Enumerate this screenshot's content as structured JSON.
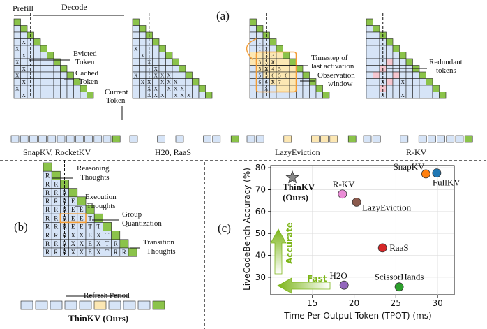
{
  "colors": {
    "cell": "#d6e4f7",
    "green": "#8bc34a",
    "stroke": "#222",
    "pink": "#f6c6cf",
    "amber": "#fce7b3",
    "orange": "#f39c34",
    "accent": "#7cb518",
    "grid": "#dddddd"
  },
  "panel_a": {
    "tag": "(a)",
    "prefill": "Prefill",
    "decode": "Decode",
    "x_mark": "X",
    "methods": [
      {
        "name": "SnapKV, RocketKV",
        "notes": [
          "Evicted Token",
          "Cached Token",
          "Current Token"
        ]
      },
      {
        "name": "H20, RaaS",
        "notes": []
      },
      {
        "name": "LazyEviction",
        "notes": [
          "Timestep of last activation",
          "Observation window"
        ]
      },
      {
        "name": "R-KV",
        "notes": [
          "Redundant tokens"
        ]
      }
    ],
    "lazy_numbers": [
      [
        "1"
      ],
      [
        "1",
        "2"
      ],
      [
        "1",
        "3",
        "3"
      ],
      [
        "3",
        "3",
        "4"
      ],
      [
        "5",
        "3",
        "4",
        "5"
      ],
      [
        "5",
        "3",
        "6",
        "5",
        "6"
      ],
      [
        "6",
        "6",
        "7",
        "7"
      ]
    ]
  },
  "panel_b": {
    "tag": "(b)",
    "labels": [
      "Reasoning Thoughts",
      "Execution Thoughts",
      "Group Quantization",
      "Transition Thoughts",
      "Refresh Period"
    ],
    "title": "ThinKV (Ours)",
    "rows": [
      "",
      "R",
      "RR",
      "RRR",
      "RRRE",
      "RRREE",
      "RRREET",
      "RRREETT",
      "RRRXXEXTR",
      "RRRXXEXTRR",
      "RRRXXEXTRRT"
    ]
  },
  "panel_c": {
    "tag": "(c)"
  },
  "chart_data": {
    "type": "scatter",
    "xlabel": "Time Per Output Token (TPOT) (ms)",
    "ylabel": "LiveCodeBench Accuracy (%)",
    "xlim": [
      10,
      32
    ],
    "ylim": [
      22,
      81
    ],
    "xticks": [
      15,
      20,
      25,
      30
    ],
    "yticks": [
      30,
      40,
      50,
      60,
      70,
      80
    ],
    "annotations": {
      "accurate": "Accurate",
      "fast": "Fast"
    },
    "points": [
      {
        "name": "ThinKV",
        "sub": "(Ours)",
        "x": 12.6,
        "y": 75.5,
        "color": "#888888",
        "marker": "star"
      },
      {
        "name": "R-KV",
        "x": 18.6,
        "y": 68.0,
        "color": "#ea8cd6",
        "marker": "circle"
      },
      {
        "name": "LazyEviction",
        "x": 20.3,
        "y": 64.3,
        "color": "#8b5a4d",
        "marker": "circle"
      },
      {
        "name": "SnapKV",
        "x": 28.6,
        "y": 77.2,
        "color": "#ff7f0e",
        "marker": "circle"
      },
      {
        "name": "FullKV",
        "x": 29.9,
        "y": 77.6,
        "color": "#1f77b4",
        "marker": "circle"
      },
      {
        "name": "RaaS",
        "x": 23.4,
        "y": 43.4,
        "color": "#d62728",
        "marker": "circle"
      },
      {
        "name": "H2O",
        "x": 18.8,
        "y": 26.4,
        "color": "#9467bd",
        "marker": "circle"
      },
      {
        "name": "ScissorHands",
        "x": 25.4,
        "y": 25.6,
        "color": "#2ca02c",
        "marker": "circle"
      }
    ]
  }
}
